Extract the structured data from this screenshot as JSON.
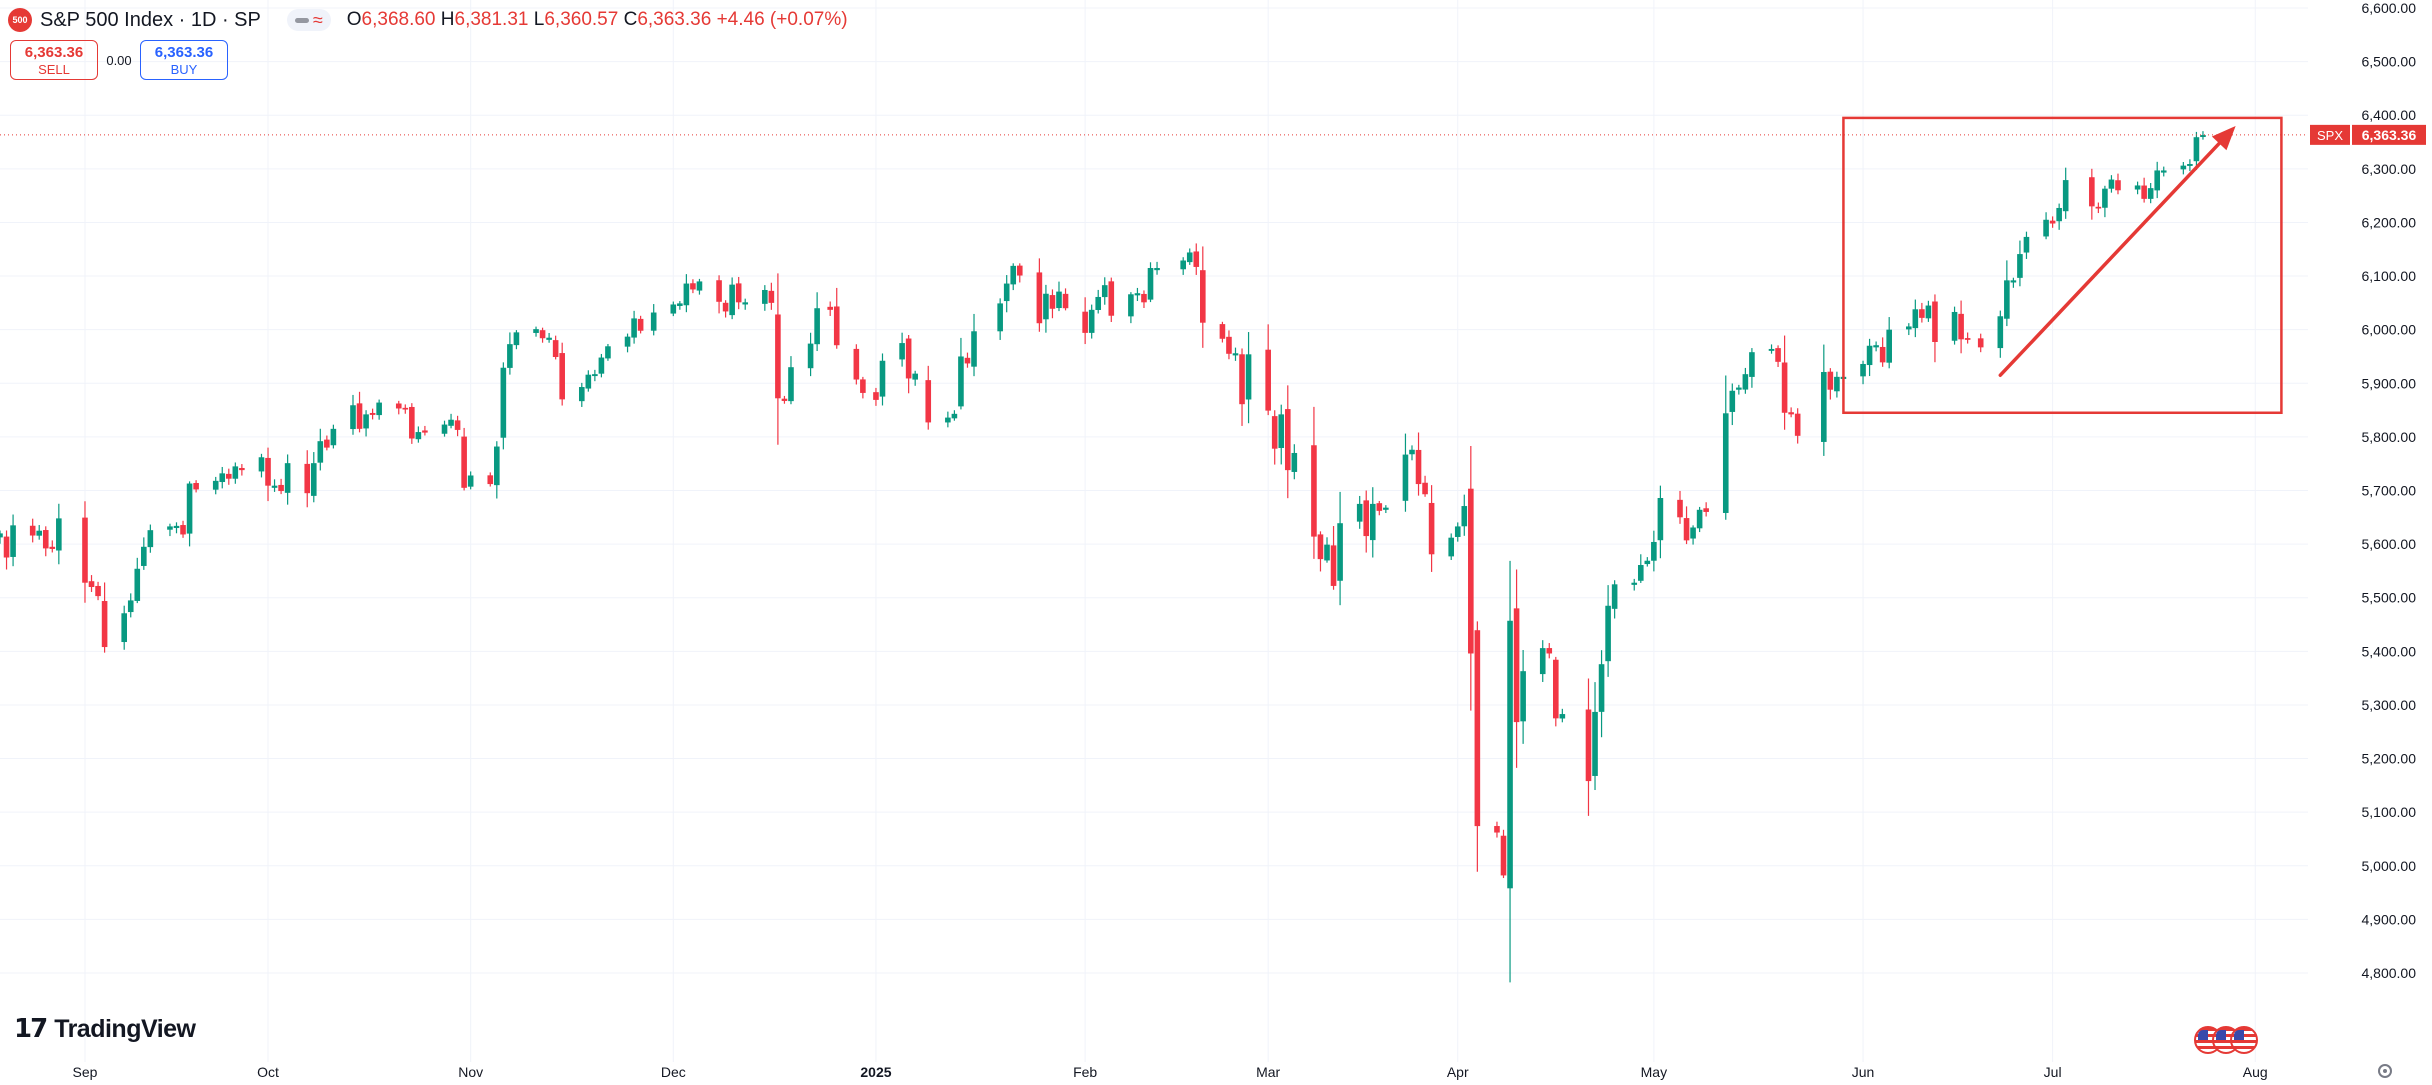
{
  "header": {
    "symbol_icon": "500",
    "title": "S&P 500 Index · 1D · SP",
    "ohlc": {
      "open_label": "O",
      "open": "6,368.60",
      "high_label": "H",
      "high": "6,381.31",
      "low_label": "L",
      "low": "6,360.57",
      "close_label": "C",
      "close": "6,363.36",
      "change": "+4.46 (+0.07%)"
    }
  },
  "trade": {
    "sell_price": "6,363.36",
    "sell_label": "SELL",
    "spread": "0.00",
    "buy_price": "6,363.36",
    "buy_label": "BUY"
  },
  "branding": {
    "logo_mark": "17",
    "logo_text": "TradingView"
  },
  "colors": {
    "up": "#089981",
    "down": "#f23645",
    "annotation": "#e53935",
    "grid": "#f0f3fa"
  },
  "icons": [
    "tradingview-logo-icon",
    "us-flag-icon",
    "settings-icon"
  ],
  "chart_data": {
    "type": "candlestick",
    "symbol": "SPX",
    "ylim": [
      4760,
      6610
    ],
    "y_ticks": [
      4800,
      4900,
      5000,
      5100,
      5200,
      5300,
      5400,
      5500,
      5600,
      5700,
      5800,
      5900,
      6000,
      6100,
      6200,
      6300,
      6400,
      6500,
      6600
    ],
    "y_tick_labels": [
      "4,800.00",
      "4,900.00",
      "5,000.00",
      "5,100.00",
      "5,200.00",
      "5,300.00",
      "5,400.00",
      "5,500.00",
      "5,600.00",
      "5,700.00",
      "5,800.00",
      "5,900.00",
      "6,000.00",
      "6,100.00",
      "6,200.00",
      "6,300.00",
      "6,400.00",
      "6,500.00",
      "6,600.00"
    ],
    "x_labels": [
      {
        "label": "Sep",
        "date": "2024-09-03"
      },
      {
        "label": "Oct",
        "date": "2024-10-01"
      },
      {
        "label": "Nov",
        "date": "2024-11-01"
      },
      {
        "label": "Dec",
        "date": "2024-12-02"
      },
      {
        "label": "2025",
        "date": "2025-01-02",
        "bold": true
      },
      {
        "label": "Feb",
        "date": "2025-02-03"
      },
      {
        "label": "Mar",
        "date": "2025-03-03"
      },
      {
        "label": "Apr",
        "date": "2025-04-01"
      },
      {
        "label": "May",
        "date": "2025-05-01"
      },
      {
        "label": "Jun",
        "date": "2025-06-02"
      },
      {
        "label": "Jul",
        "date": "2025-07-01"
      },
      {
        "label": "Aug",
        "date": "2025-08-01"
      }
    ],
    "last_price": 6363.36,
    "last_price_label": "6,363.36",
    "x_start_date": "2024-08-21",
    "x_end_date": "2025-08-21",
    "annotations": {
      "rectangle": {
        "date_from": "2025-05-30",
        "date_to": "2025-08-05",
        "price_low": 5845,
        "price_high": 6395
      },
      "arrow": {
        "date_from": "2025-06-23",
        "price_from": 5915,
        "date_to": "2025-07-29",
        "price_to": 6380
      }
    },
    "closes": [
      [
        "2024-08-21",
        5620
      ],
      [
        "2024-08-22",
        5575
      ],
      [
        "2024-08-23",
        5635
      ],
      [
        "2024-08-26",
        5616
      ],
      [
        "2024-08-27",
        5625
      ],
      [
        "2024-08-28",
        5592
      ],
      [
        "2024-08-29",
        5591
      ],
      [
        "2024-08-30",
        5648
      ],
      [
        "2024-09-03",
        5528
      ],
      [
        "2024-09-04",
        5520
      ],
      [
        "2024-09-05",
        5503
      ],
      [
        "2024-09-06",
        5408
      ],
      [
        "2024-09-09",
        5471
      ],
      [
        "2024-09-10",
        5495
      ],
      [
        "2024-09-11",
        5554
      ],
      [
        "2024-09-12",
        5595
      ],
      [
        "2024-09-13",
        5626
      ],
      [
        "2024-09-16",
        5633
      ],
      [
        "2024-09-17",
        5634
      ],
      [
        "2024-09-18",
        5618
      ],
      [
        "2024-09-19",
        5713
      ],
      [
        "2024-09-20",
        5702
      ],
      [
        "2024-09-23",
        5718
      ],
      [
        "2024-09-24",
        5732
      ],
      [
        "2024-09-25",
        5722
      ],
      [
        "2024-09-26",
        5745
      ],
      [
        "2024-09-27",
        5738
      ],
      [
        "2024-09-30",
        5762
      ],
      [
        "2024-10-01",
        5709
      ],
      [
        "2024-10-02",
        5709
      ],
      [
        "2024-10-03",
        5699
      ],
      [
        "2024-10-04",
        5751
      ],
      [
        "2024-10-07",
        5695
      ],
      [
        "2024-10-08",
        5751
      ],
      [
        "2024-10-09",
        5792
      ],
      [
        "2024-10-10",
        5780
      ],
      [
        "2024-10-11",
        5815
      ],
      [
        "2024-10-14",
        5859
      ],
      [
        "2024-10-15",
        5815
      ],
      [
        "2024-10-16",
        5842
      ],
      [
        "2024-10-17",
        5841
      ],
      [
        "2024-10-18",
        5864
      ],
      [
        "2024-10-21",
        5853
      ],
      [
        "2024-10-22",
        5851
      ],
      [
        "2024-10-23",
        5797
      ],
      [
        "2024-10-24",
        5809
      ],
      [
        "2024-10-25",
        5808
      ],
      [
        "2024-10-28",
        5823
      ],
      [
        "2024-10-29",
        5832
      ],
      [
        "2024-10-30",
        5813
      ],
      [
        "2024-10-31",
        5705
      ],
      [
        "2024-11-01",
        5728
      ],
      [
        "2024-11-04",
        5712
      ],
      [
        "2024-11-05",
        5782
      ],
      [
        "2024-11-06",
        5929
      ],
      [
        "2024-11-07",
        5973
      ],
      [
        "2024-11-08",
        5995
      ],
      [
        "2024-11-11",
        6001
      ],
      [
        "2024-11-12",
        5984
      ],
      [
        "2024-11-13",
        5985
      ],
      [
        "2024-11-14",
        5949
      ],
      [
        "2024-11-15",
        5870
      ],
      [
        "2024-11-18",
        5893
      ],
      [
        "2024-11-19",
        5916
      ],
      [
        "2024-11-20",
        5917
      ],
      [
        "2024-11-21",
        5948
      ],
      [
        "2024-11-22",
        5969
      ],
      [
        "2024-11-25",
        5987
      ],
      [
        "2024-11-26",
        6021
      ],
      [
        "2024-11-27",
        5998
      ],
      [
        "2024-11-29",
        6032
      ],
      [
        "2024-12-02",
        6047
      ],
      [
        "2024-12-03",
        6049
      ],
      [
        "2024-12-04",
        6086
      ],
      [
        "2024-12-05",
        6075
      ],
      [
        "2024-12-06",
        6090
      ],
      [
        "2024-12-09",
        6052
      ],
      [
        "2024-12-10",
        6034
      ],
      [
        "2024-12-11",
        6084
      ],
      [
        "2024-12-12",
        6051
      ],
      [
        "2024-12-13",
        6051
      ],
      [
        "2024-12-16",
        6074
      ],
      [
        "2024-12-17",
        6050
      ],
      [
        "2024-12-18",
        5872
      ],
      [
        "2024-12-19",
        5867
      ],
      [
        "2024-12-20",
        5930
      ],
      [
        "2024-12-23",
        5974
      ],
      [
        "2024-12-24",
        6040
      ],
      [
        "2024-12-26",
        6037
      ],
      [
        "2024-12-27",
        5971
      ],
      [
        "2024-12-30",
        5907
      ],
      [
        "2024-12-31",
        5882
      ],
      [
        "2025-01-02",
        5869
      ],
      [
        "2025-01-03",
        5942
      ],
      [
        "2025-01-06",
        5975
      ],
      [
        "2025-01-07",
        5909
      ],
      [
        "2025-01-08",
        5918
      ],
      [
        "2025-01-10",
        5827
      ],
      [
        "2025-01-13",
        5836
      ],
      [
        "2025-01-14",
        5843
      ],
      [
        "2025-01-15",
        5950
      ],
      [
        "2025-01-16",
        5937
      ],
      [
        "2025-01-17",
        5997
      ],
      [
        "2025-01-21",
        6049
      ],
      [
        "2025-01-22",
        6086
      ],
      [
        "2025-01-23",
        6119
      ],
      [
        "2025-01-24",
        6101
      ],
      [
        "2025-01-27",
        6012
      ],
      [
        "2025-01-28",
        6067
      ],
      [
        "2025-01-29",
        6039
      ],
      [
        "2025-01-30",
        6071
      ],
      [
        "2025-01-31",
        6040
      ],
      [
        "2025-02-03",
        5994
      ],
      [
        "2025-02-04",
        6037
      ],
      [
        "2025-02-05",
        6061
      ],
      [
        "2025-02-06",
        6083
      ],
      [
        "2025-02-07",
        6026
      ],
      [
        "2025-02-10",
        6066
      ],
      [
        "2025-02-11",
        6068
      ],
      [
        "2025-02-12",
        6051
      ],
      [
        "2025-02-13",
        6115
      ],
      [
        "2025-02-14",
        6115
      ],
      [
        "2025-02-18",
        6129
      ],
      [
        "2025-02-19",
        6144
      ],
      [
        "2025-02-20",
        6117
      ],
      [
        "2025-02-21",
        6013
      ],
      [
        "2025-02-24",
        5983
      ],
      [
        "2025-02-25",
        5955
      ],
      [
        "2025-02-26",
        5956
      ],
      [
        "2025-02-27",
        5861
      ],
      [
        "2025-02-28",
        5954
      ],
      [
        "2025-03-03",
        5849
      ],
      [
        "2025-03-04",
        5778
      ],
      [
        "2025-03-05",
        5842
      ],
      [
        "2025-03-06",
        5738
      ],
      [
        "2025-03-07",
        5770
      ],
      [
        "2025-03-10",
        5614
      ],
      [
        "2025-03-11",
        5572
      ],
      [
        "2025-03-12",
        5599
      ],
      [
        "2025-03-13",
        5522
      ],
      [
        "2025-03-14",
        5639
      ],
      [
        "2025-03-17",
        5675
      ],
      [
        "2025-03-18",
        5615
      ],
      [
        "2025-03-19",
        5675
      ],
      [
        "2025-03-20",
        5662
      ],
      [
        "2025-03-21",
        5668
      ],
      [
        "2025-03-24",
        5767
      ],
      [
        "2025-03-25",
        5776
      ],
      [
        "2025-03-26",
        5712
      ],
      [
        "2025-03-27",
        5693
      ],
      [
        "2025-03-28",
        5581
      ],
      [
        "2025-03-31",
        5612
      ],
      [
        "2025-04-01",
        5633
      ],
      [
        "2025-04-02",
        5671
      ],
      [
        "2025-04-03",
        5396
      ],
      [
        "2025-04-04",
        5074
      ],
      [
        "2025-04-07",
        5062
      ],
      [
        "2025-04-08",
        4982
      ],
      [
        "2025-04-09",
        5457
      ],
      [
        "2025-04-10",
        5268
      ],
      [
        "2025-04-11",
        5363
      ],
      [
        "2025-04-14",
        5406
      ],
      [
        "2025-04-15",
        5396
      ],
      [
        "2025-04-16",
        5275
      ],
      [
        "2025-04-17",
        5283
      ],
      [
        "2025-04-21",
        5158
      ],
      [
        "2025-04-22",
        5287
      ],
      [
        "2025-04-23",
        5376
      ],
      [
        "2025-04-24",
        5485
      ],
      [
        "2025-04-25",
        5525
      ],
      [
        "2025-04-28",
        5528
      ],
      [
        "2025-04-29",
        5561
      ],
      [
        "2025-04-30",
        5569
      ],
      [
        "2025-05-01",
        5604
      ],
      [
        "2025-05-02",
        5686
      ],
      [
        "2025-05-05",
        5650
      ],
      [
        "2025-05-06",
        5607
      ],
      [
        "2025-05-07",
        5631
      ],
      [
        "2025-05-08",
        5664
      ],
      [
        "2025-05-09",
        5660
      ],
      [
        "2025-05-12",
        5844
      ],
      [
        "2025-05-13",
        5886
      ],
      [
        "2025-05-14",
        5892
      ],
      [
        "2025-05-15",
        5917
      ],
      [
        "2025-05-16",
        5958
      ],
      [
        "2025-05-19",
        5964
      ],
      [
        "2025-05-20",
        5940
      ],
      [
        "2025-05-21",
        5845
      ],
      [
        "2025-05-22",
        5842
      ],
      [
        "2025-05-23",
        5802
      ],
      [
        "2025-05-27",
        5921
      ],
      [
        "2025-05-28",
        5888
      ],
      [
        "2025-05-29",
        5912
      ],
      [
        "2025-05-30",
        5912
      ],
      [
        "2025-06-02",
        5936
      ],
      [
        "2025-06-03",
        5970
      ],
      [
        "2025-06-04",
        5971
      ],
      [
        "2025-06-05",
        5939
      ],
      [
        "2025-06-06",
        6000
      ],
      [
        "2025-06-09",
        6006
      ],
      [
        "2025-06-10",
        6038
      ],
      [
        "2025-06-11",
        6022
      ],
      [
        "2025-06-12",
        6045
      ],
      [
        "2025-06-13",
        5977
      ],
      [
        "2025-06-16",
        6033
      ],
      [
        "2025-06-17",
        5982
      ],
      [
        "2025-06-18",
        5981
      ],
      [
        "2025-06-20",
        5967
      ],
      [
        "2025-06-23",
        6025
      ],
      [
        "2025-06-24",
        6092
      ],
      [
        "2025-06-25",
        6092
      ],
      [
        "2025-06-26",
        6141
      ],
      [
        "2025-06-27",
        6173
      ],
      [
        "2025-06-30",
        6205
      ],
      [
        "2025-07-01",
        6198
      ],
      [
        "2025-07-02",
        6227
      ],
      [
        "2025-07-03",
        6279
      ],
      [
        "2025-07-07",
        6230
      ],
      [
        "2025-07-08",
        6226
      ],
      [
        "2025-07-09",
        6263
      ],
      [
        "2025-07-10",
        6280
      ],
      [
        "2025-07-11",
        6260
      ],
      [
        "2025-07-14",
        6269
      ],
      [
        "2025-07-15",
        6244
      ],
      [
        "2025-07-16",
        6264
      ],
      [
        "2025-07-17",
        6297
      ],
      [
        "2025-07-18",
        6297
      ],
      [
        "2025-07-21",
        6306
      ],
      [
        "2025-07-22",
        6309
      ],
      [
        "2025-07-23",
        6359
      ],
      [
        "2025-07-24",
        6363
      ]
    ]
  }
}
